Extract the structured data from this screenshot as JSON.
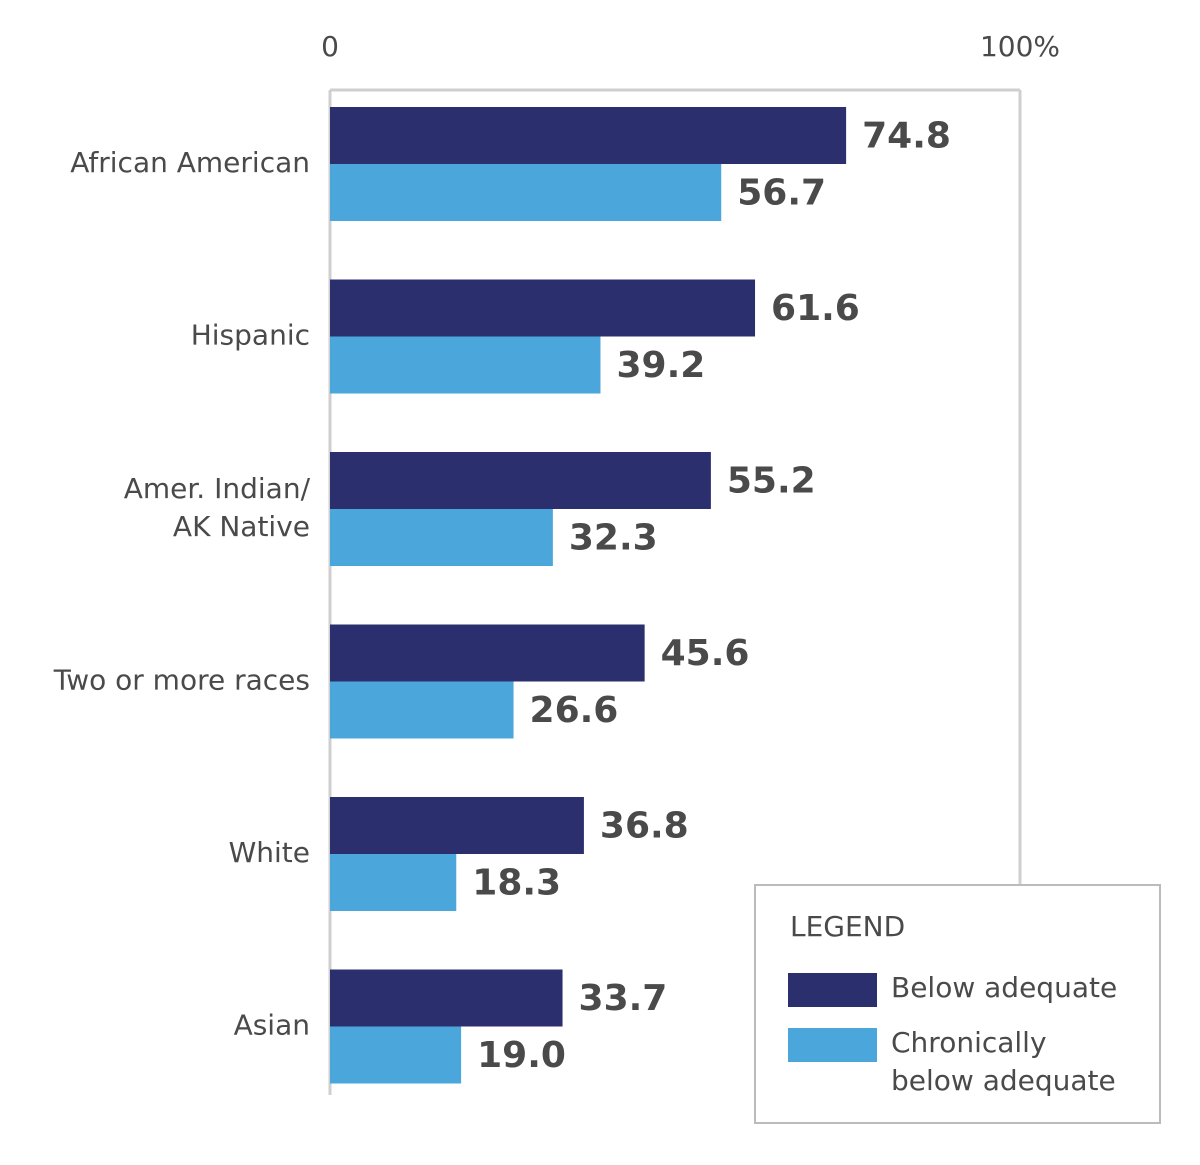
{
  "chart_data": {
    "type": "bar",
    "orientation": "horizontal",
    "categories": [
      "African American",
      "Hispanic",
      "Amer. Indian/\nAK Native",
      "Two or more races",
      "White",
      "Asian"
    ],
    "series": [
      {
        "name": "Below adequate",
        "color": "#2b2f6e",
        "values": [
          74.8,
          61.6,
          55.2,
          45.6,
          36.8,
          33.7
        ]
      },
      {
        "name": "Chronically\nbelow adequate",
        "color": "#4ba6db",
        "values": [
          56.7,
          39.2,
          32.3,
          26.6,
          18.3,
          19.0
        ],
        "value_labels": [
          "56.7",
          "39.2",
          "32.3",
          "26.6",
          "18.3",
          "19.0"
        ]
      }
    ],
    "xlim": [
      0,
      100
    ],
    "xticks": [
      0,
      {
        "value": 100,
        "label": "100%"
      }
    ],
    "grid": true,
    "legend_title": "LEGEND",
    "legend": "bottom-right"
  }
}
